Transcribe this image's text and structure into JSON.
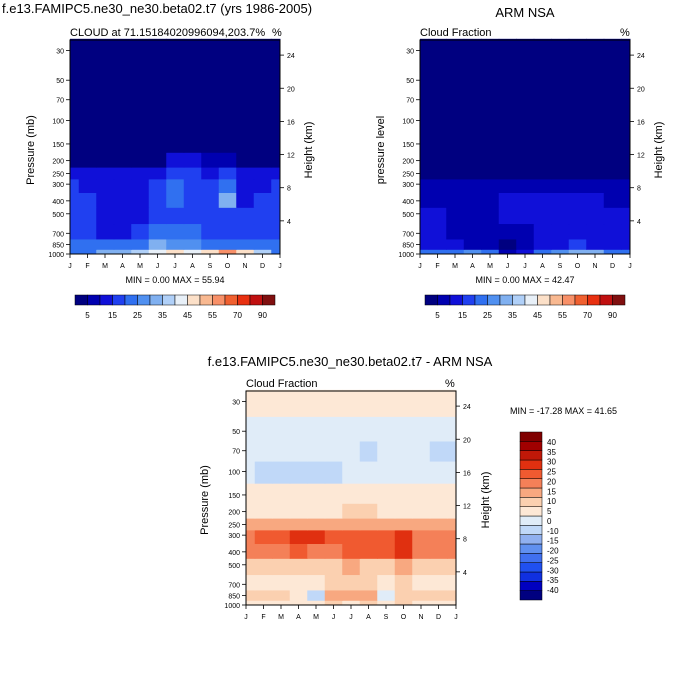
{
  "panels": [
    {
      "title": "f.e13.FAMIPC5.ne30_ne30.beta02.t7 (yrs 1986-2005)",
      "left_label": "CLOUD at 71.15184020996094,203.7%",
      "right_label": "%",
      "ylabel": "Pressure (mb)",
      "ylabel2": "Height (km)",
      "minmax": "MIN =  0.00 MAX = 55.94"
    },
    {
      "title": "ARM NSA",
      "left_label": "Cloud Fraction",
      "right_label": "%",
      "ylabel": "pressure level",
      "ylabel2": "Height (km)",
      "minmax": "MIN =  0.00 MAX = 42.47"
    },
    {
      "title": "f.e13.FAMIPC5.ne30_ne30.beta02.t7 - ARM NSA",
      "left_label": "Cloud Fraction",
      "right_label": "%",
      "ylabel": "Pressure (mb)",
      "ylabel2": "Height (km)",
      "minmax": "MIN = -17.28 MAX =  41.65"
    }
  ],
  "chart_data": [
    {
      "type": "heatmap",
      "title": "f.e13.FAMIPC5.ne30_ne30.beta02.t7 (yrs 1986-2005)",
      "xlabel": "",
      "ylabel": "Pressure (mb)",
      "ylabel_right": "Height (km)",
      "months": [
        "J",
        "F",
        "M",
        "A",
        "M",
        "J",
        "J",
        "A",
        "S",
        "O",
        "N",
        "D",
        "J"
      ],
      "pressure_ticks": [
        30,
        50,
        70,
        100,
        150,
        200,
        250,
        300,
        400,
        500,
        700,
        850,
        1000
      ],
      "height_ticks": [
        24,
        20,
        16,
        12,
        8,
        4
      ],
      "levels": [
        1000,
        850,
        700,
        500,
        400,
        300,
        250,
        200,
        150,
        100,
        70,
        50,
        30,
        20
      ],
      "z": [
        [
          24,
          24,
          30,
          30,
          38,
          42,
          46,
          44,
          46,
          56,
          46,
          38,
          24
        ],
        [
          24,
          24,
          22,
          20,
          22,
          30,
          28,
          26,
          22,
          22,
          20,
          20,
          24
        ],
        [
          18,
          16,
          14,
          14,
          16,
          20,
          20,
          20,
          18,
          18,
          18,
          18,
          18
        ],
        [
          16,
          16,
          14,
          12,
          14,
          18,
          18,
          18,
          16,
          16,
          16,
          16,
          16
        ],
        [
          18,
          18,
          14,
          10,
          14,
          18,
          20,
          18,
          16,
          30,
          14,
          16,
          18
        ],
        [
          16,
          14,
          12,
          10,
          12,
          16,
          20,
          18,
          16,
          24,
          14,
          14,
          16
        ],
        [
          14,
          12,
          12,
          10,
          12,
          14,
          16,
          16,
          14,
          16,
          14,
          12,
          14
        ],
        [
          4,
          3,
          3,
          3,
          3,
          4,
          10,
          12,
          8,
          6,
          4,
          4,
          4
        ],
        [
          1,
          1,
          1,
          1,
          1,
          1,
          1,
          1,
          1,
          1,
          1,
          1,
          1
        ],
        [
          1,
          1,
          1,
          1,
          1,
          1,
          1,
          1,
          1,
          1,
          1,
          1,
          1
        ],
        [
          1,
          1,
          1,
          1,
          1,
          1,
          1,
          1,
          1,
          1,
          1,
          1,
          1
        ],
        [
          1,
          1,
          1,
          1,
          1,
          1,
          1,
          1,
          1,
          1,
          1,
          1,
          1
        ],
        [
          1,
          1,
          1,
          1,
          1,
          1,
          1,
          1,
          1,
          1,
          1,
          1,
          1
        ],
        [
          1,
          1,
          1,
          1,
          1,
          1,
          1,
          1,
          1,
          1,
          1,
          1,
          1
        ]
      ],
      "color_levels": [
        5,
        10,
        15,
        20,
        25,
        30,
        35,
        40,
        45,
        50,
        55,
        60,
        70,
        80,
        90
      ],
      "colorbar_labels": [
        "5",
        "15",
        "25",
        "35",
        "45",
        "55",
        "70",
        "90"
      ],
      "min": 0.0,
      "max": 55.94
    },
    {
      "type": "heatmap",
      "title": "ARM NSA",
      "ylabel": "pressure level",
      "ylabel_right": "Height (km)",
      "months": [
        "J",
        "F",
        "M",
        "A",
        "M",
        "J",
        "J",
        "A",
        "S",
        "O",
        "N",
        "D",
        "J"
      ],
      "pressure_ticks": [
        30,
        50,
        70,
        100,
        150,
        200,
        250,
        300,
        400,
        500,
        700,
        850,
        1000
      ],
      "height_ticks": [
        24,
        20,
        16,
        12,
        8,
        4
      ],
      "levels": [
        1000,
        850,
        700,
        500,
        400,
        300,
        250,
        200,
        150,
        100,
        70,
        50,
        30,
        20
      ],
      "z": [
        [
          20,
          22,
          24,
          26,
          20,
          8,
          10,
          20,
          26,
          34,
          30,
          24,
          20
        ],
        [
          14,
          14,
          10,
          8,
          6,
          4,
          6,
          10,
          14,
          16,
          14,
          12,
          14
        ],
        [
          12,
          10,
          8,
          6,
          6,
          6,
          8,
          10,
          10,
          10,
          10,
          10,
          12
        ],
        [
          10,
          10,
          8,
          6,
          8,
          10,
          10,
          10,
          10,
          10,
          10,
          10,
          10
        ],
        [
          8,
          8,
          8,
          6,
          8,
          10,
          10,
          10,
          10,
          10,
          10,
          8,
          8
        ],
        [
          6,
          6,
          6,
          6,
          6,
          8,
          8,
          8,
          8,
          8,
          6,
          6,
          6
        ],
        [
          3,
          3,
          3,
          3,
          3,
          4,
          4,
          4,
          4,
          4,
          3,
          3,
          3
        ],
        [
          1,
          1,
          1,
          1,
          1,
          1,
          1,
          1,
          1,
          1,
          1,
          1,
          1
        ],
        [
          1,
          1,
          1,
          1,
          1,
          1,
          1,
          1,
          1,
          1,
          1,
          1,
          1
        ],
        [
          1,
          1,
          1,
          1,
          1,
          1,
          1,
          1,
          1,
          1,
          1,
          1,
          1
        ],
        [
          1,
          1,
          1,
          1,
          1,
          1,
          1,
          1,
          1,
          1,
          1,
          1,
          1
        ],
        [
          1,
          1,
          1,
          1,
          1,
          1,
          1,
          1,
          1,
          1,
          1,
          1,
          1
        ],
        [
          1,
          1,
          1,
          1,
          1,
          1,
          1,
          1,
          1,
          1,
          1,
          1,
          1
        ],
        [
          1,
          1,
          1,
          1,
          1,
          1,
          1,
          1,
          1,
          1,
          1,
          1,
          1
        ]
      ],
      "color_levels": [
        5,
        10,
        15,
        20,
        25,
        30,
        35,
        40,
        45,
        50,
        55,
        60,
        70,
        80,
        90
      ],
      "colorbar_labels": [
        "5",
        "15",
        "25",
        "35",
        "45",
        "55",
        "70",
        "90"
      ],
      "min": 0.0,
      "max": 42.47
    },
    {
      "type": "heatmap",
      "title": "f.e13.FAMIPC5.ne30_ne30.beta02.t7 - ARM NSA",
      "ylabel": "Pressure (mb)",
      "ylabel_right": "Height (km)",
      "months": [
        "J",
        "F",
        "M",
        "A",
        "M",
        "J",
        "J",
        "A",
        "S",
        "O",
        "N",
        "D",
        "J"
      ],
      "pressure_ticks": [
        30,
        50,
        70,
        100,
        150,
        200,
        250,
        300,
        400,
        500,
        700,
        850,
        1000
      ],
      "height_ticks": [
        24,
        20,
        16,
        12,
        8,
        4
      ],
      "levels": [
        1000,
        850,
        700,
        500,
        400,
        300,
        250,
        200,
        150,
        100,
        70,
        50,
        30,
        20
      ],
      "z": [
        [
          4,
          4,
          4,
          2,
          2,
          6,
          2,
          6,
          4,
          6,
          4,
          4,
          4
        ],
        [
          8,
          6,
          6,
          2,
          -6,
          12,
          14,
          10,
          -2,
          6,
          8,
          8,
          8
        ],
        [
          4,
          4,
          4,
          4,
          4,
          6,
          8,
          6,
          4,
          6,
          4,
          4,
          4
        ],
        [
          6,
          6,
          6,
          6,
          6,
          8,
          10,
          8,
          8,
          12,
          6,
          6,
          6
        ],
        [
          16,
          18,
          18,
          22,
          18,
          18,
          20,
          22,
          22,
          28,
          16,
          16,
          16
        ],
        [
          16,
          20,
          24,
          28,
          26,
          22,
          22,
          24,
          24,
          26,
          16,
          16,
          16
        ],
        [
          12,
          14,
          14,
          14,
          14,
          14,
          14,
          14,
          14,
          14,
          12,
          12,
          12
        ],
        [
          4,
          4,
          4,
          4,
          4,
          4,
          6,
          6,
          4,
          4,
          4,
          4,
          4
        ],
        [
          2,
          2,
          2,
          2,
          2,
          2,
          2,
          2,
          2,
          2,
          2,
          2,
          2
        ],
        [
          -4,
          -6,
          -6,
          -6,
          -6,
          -6,
          -4,
          -4,
          -4,
          -4,
          -4,
          -4,
          -4
        ],
        [
          -4,
          -4,
          -4,
          -4,
          -4,
          -4,
          -4,
          -8,
          -4,
          -4,
          -4,
          -6,
          -6
        ],
        [
          -2,
          -2,
          -2,
          -2,
          -2,
          -2,
          -2,
          -2,
          -2,
          -2,
          -2,
          -2,
          -2
        ],
        [
          2,
          2,
          2,
          2,
          2,
          2,
          2,
          2,
          2,
          2,
          2,
          2,
          2
        ],
        [
          2,
          2,
          2,
          2,
          2,
          2,
          2,
          2,
          2,
          2,
          2,
          2,
          2
        ]
      ],
      "color_levels": [
        -40,
        -35,
        -30,
        -25,
        -20,
        -15,
        -10,
        -5,
        0,
        5,
        10,
        15,
        20,
        25,
        30,
        35,
        40
      ],
      "colorbar_labels": [
        "40",
        "35",
        "30",
        "25",
        "20",
        "15",
        "10",
        "5",
        "0",
        "-10",
        "-15",
        "-20",
        "-25",
        "-30",
        "-35",
        "-40"
      ],
      "min": -17.28,
      "max": 41.65
    }
  ],
  "colors": {
    "seq": [
      "#000080",
      "#0000b0",
      "#1010d8",
      "#2040f0",
      "#3070f0",
      "#5090f0",
      "#80b0f0",
      "#b0d0f8",
      "#e8f0f8",
      "#fce0c8",
      "#f8b890",
      "#f89068",
      "#f06030",
      "#e83010",
      "#c01010",
      "#801010"
    ],
    "div": [
      "#000080",
      "#0000c0",
      "#1030e0",
      "#2050f0",
      "#4070f0",
      "#6090f0",
      "#90b0f0",
      "#c0d8f8",
      "#e0ecf8",
      "#fde8d6",
      "#fbd0b0",
      "#f8a880",
      "#f48058",
      "#f05a30",
      "#e03010",
      "#c01808",
      "#a00000",
      "#800000"
    ]
  }
}
